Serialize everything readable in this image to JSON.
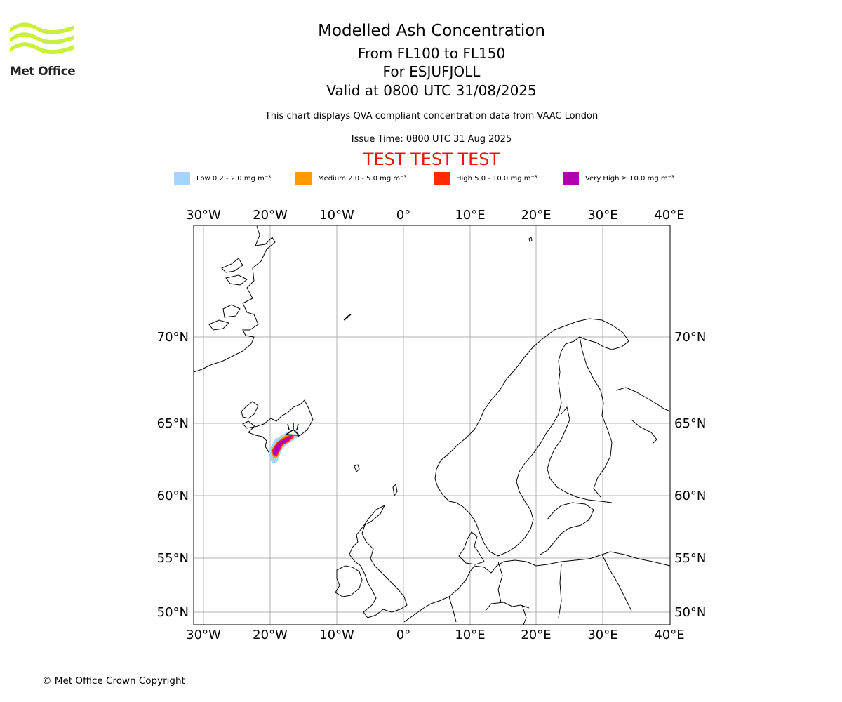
{
  "header": {
    "logo_text": "Met Office",
    "title": "Modelled Ash Concentration",
    "flight_levels": "From FL100 to FL150",
    "volcano": "For ESJUFJOLL",
    "valid_time": "Valid at 0800 UTC 31/08/2025",
    "description": "This chart displays QVA compliant concentration data from VAAC London",
    "issue_time": "Issue Time: 0800 UTC 31 Aug 2025",
    "test_banner": "TEST TEST TEST"
  },
  "legend": [
    {
      "label": "Low 0.2 - 2.0 mg m⁻³",
      "color": "#a6d4fa"
    },
    {
      "label": "Medium 2.0 - 5.0 mg m⁻³",
      "color": "#ff9a00"
    },
    {
      "label": "High 5.0 - 10.0 mg m⁻³",
      "color": "#ff2a00"
    },
    {
      "label": "Very High ≥ 10.0 mg m⁻³",
      "color": "#b000b0"
    }
  ],
  "map": {
    "lon_ticks": [
      "30°W",
      "20°W",
      "10°W",
      "0°",
      "10°E",
      "20°E",
      "30°E",
      "40°E"
    ],
    "lat_ticks": [
      "70°N",
      "65°N",
      "60°N",
      "55°N",
      "50°N"
    ],
    "lon_range": [
      -31.5,
      40
    ],
    "lat_range": [
      49,
      75
    ],
    "volcano_symbol": "volcano-triangle-icon",
    "coastline_color": "#000000",
    "grid_color": "#b0b0b0"
  },
  "footer": {
    "copyright": "© Met Office Crown Copyright"
  }
}
